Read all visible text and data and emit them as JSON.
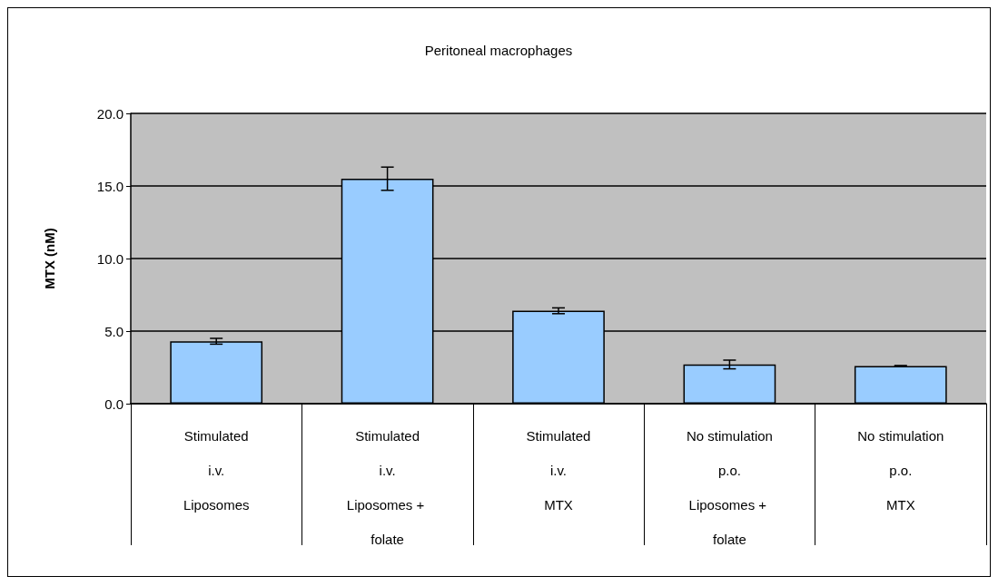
{
  "chart_data": {
    "type": "bar",
    "title": "Peritoneal macrophages",
    "ylabel": "MTX (nM)",
    "categories": [
      "Stimulated\ni.v.\nLiposomes",
      "Stimulated\ni.v.\nLiposomes + folate",
      "Stimulated\ni.v.\nMTX",
      "No stimulation\np.o.\nLiposomes + folate",
      "No stimulation\np.o.\nMTX"
    ],
    "values": [
      4.3,
      15.5,
      6.4,
      2.7,
      2.6
    ],
    "errors": [
      0.2,
      0.8,
      0.2,
      0.3,
      0.03
    ],
    "color": "#99ccff",
    "ylim": [
      0,
      20
    ],
    "yticks": [
      {
        "value": 0,
        "label": "0.0"
      },
      {
        "value": 5,
        "label": "5.0"
      },
      {
        "value": 10,
        "label": "10.0"
      },
      {
        "value": 15,
        "label": "15.0"
      },
      {
        "value": 20,
        "label": "20.0"
      }
    ],
    "grid": "y"
  }
}
